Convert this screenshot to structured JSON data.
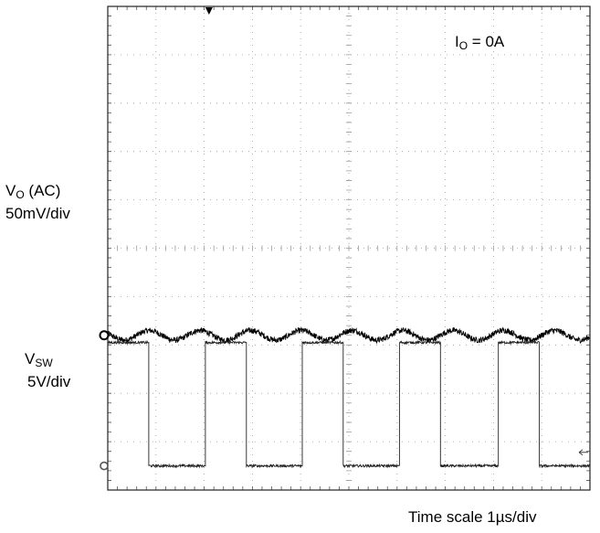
{
  "chart_data": {
    "type": "line",
    "grid": true,
    "grid_divisions": {
      "horizontal": 10,
      "vertical": 10
    },
    "annotation": {
      "main": "I",
      "sub": "O",
      "rest": " = 0A"
    },
    "channels": [
      {
        "name_main": "V",
        "name_sub": "O",
        "name_rest": " (AC)",
        "scale": "50mV/div",
        "kind": "ripple",
        "offset_div": 3.2,
        "period_us": 1.05,
        "amplitude_div": 0.1,
        "noise_div": 0.06
      },
      {
        "name_main": "V",
        "name_sub": "SW",
        "name_rest": "",
        "scale": "5V/div",
        "kind": "square",
        "low_div": 0.5,
        "high_div": 3.05,
        "rising_edges_us": [
          0.0,
          2.02,
          4.03,
          6.05,
          8.1
        ],
        "falling_edges_us": [
          0.85,
          2.87,
          4.88,
          6.9,
          8.95
        ],
        "noise_div": 0.025
      }
    ],
    "time_scale": "Time  scale  1µs/div"
  }
}
